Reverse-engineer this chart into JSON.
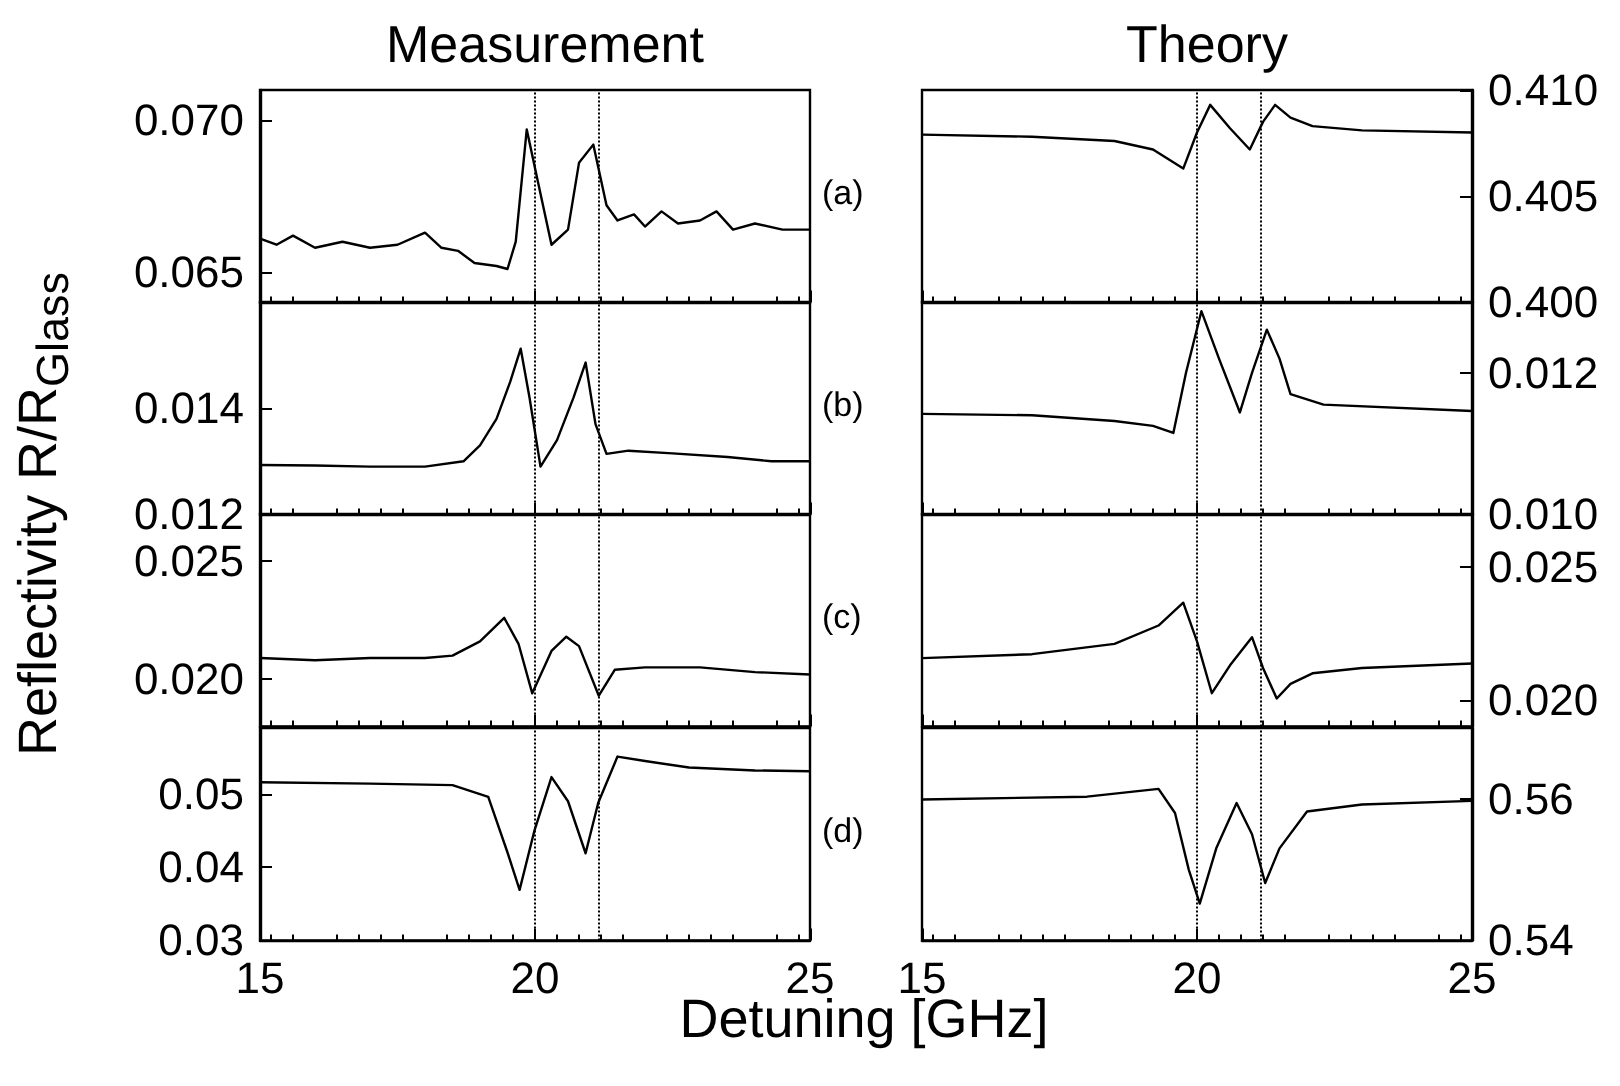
{
  "chart_data": [
    {
      "type": "line",
      "title": "Measurement",
      "ylabel": "Reflectivity R/R$_{Glass}$",
      "xlim": [
        15,
        25
      ],
      "xticks": [
        15,
        20,
        25
      ],
      "ylim": [
        0.064,
        0.071
      ],
      "yticks": [
        0.065,
        {
          "value": 0.07,
          "label": "0.070"
        }
      ],
      "tick_labels": "y",
      "grid": false,
      "ref_lines": [
        {
          "axis": "x",
          "value": 20,
          "line_style": "dotted",
          "color": "#000000"
        },
        {
          "axis": "x",
          "value": 21.15,
          "line_style": "dotted",
          "color": "#000000"
        }
      ],
      "series": [
        {
          "color": "#000000",
          "x": [
            15,
            15.3,
            15.6,
            16,
            16.5,
            17,
            17.5,
            18,
            18.3,
            18.6,
            18.9,
            19.3,
            19.5,
            19.65,
            19.85,
            20.05,
            20.3,
            20.6,
            20.8,
            21.06,
            21.3,
            21.5,
            21.8,
            22,
            22.3,
            22.6,
            23,
            23.3,
            23.6,
            24,
            24.5,
            25
          ],
          "values": [
            0.0661,
            0.0659,
            0.0662,
            0.0658,
            0.066,
            0.0658,
            0.0659,
            0.0663,
            0.0658,
            0.0657,
            0.0653,
            0.0652,
            0.0651,
            0.066,
            0.0697,
            0.068,
            0.0659,
            0.0664,
            0.0686,
            0.0692,
            0.0672,
            0.0667,
            0.0669,
            0.0665,
            0.067,
            0.0666,
            0.0667,
            0.067,
            0.0664,
            0.0666,
            0.0664,
            0.0664
          ]
        }
      ]
    },
    {
      "type": "line",
      "xlim": [
        15,
        25
      ],
      "xticks": [
        15,
        20,
        25
      ],
      "ylim": [
        0.012,
        0.016
      ],
      "yticks": [
        {
          "value": 0.012,
          "label": "0.012"
        },
        0.014
      ],
      "tick_labels": "y",
      "grid": false,
      "ref_lines": [
        {
          "axis": "x",
          "value": 20,
          "line_style": "dotted",
          "color": "#000000"
        },
        {
          "axis": "x",
          "value": 21.15,
          "line_style": "dotted",
          "color": "#000000"
        }
      ],
      "series": [
        {
          "color": "#000000",
          "x": [
            15,
            16,
            17,
            18,
            18.7,
            19,
            19.3,
            19.55,
            19.74,
            19.9,
            20.1,
            20.4,
            20.7,
            20.92,
            21.1,
            21.3,
            21.7,
            22.5,
            23.5,
            24.3,
            25
          ],
          "values": [
            0.01293,
            0.01292,
            0.0129,
            0.0129,
            0.013,
            0.0133,
            0.0138,
            0.0145,
            0.01512,
            0.0142,
            0.0129,
            0.0134,
            0.0142,
            0.01486,
            0.0137,
            0.01314,
            0.0132,
            0.01315,
            0.01308,
            0.013,
            0.013
          ]
        }
      ]
    },
    {
      "type": "line",
      "xlim": [
        15,
        25
      ],
      "xticks": [
        15,
        20,
        25
      ],
      "ylim": [
        0.018,
        0.027
      ],
      "yticks": [
        {
          "value": 0.02,
          "label": "0.020"
        },
        0.025
      ],
      "tick_labels": "y",
      "grid": false,
      "ref_lines": [
        {
          "axis": "x",
          "value": 20,
          "line_style": "dotted",
          "color": "#000000"
        },
        {
          "axis": "x",
          "value": 21.15,
          "line_style": "dotted",
          "color": "#000000"
        }
      ],
      "series": [
        {
          "color": "#000000",
          "x": [
            15,
            16,
            17,
            18,
            18.5,
            19,
            19.44,
            19.7,
            19.95,
            20.3,
            20.57,
            20.8,
            21.16,
            21.45,
            22,
            23,
            24,
            25
          ],
          "values": [
            0.0209,
            0.0208,
            0.0209,
            0.0209,
            0.021,
            0.0216,
            0.0226,
            0.0215,
            0.0194,
            0.0212,
            0.0218,
            0.0214,
            0.0193,
            0.0204,
            0.0205,
            0.0205,
            0.0203,
            0.0202
          ]
        }
      ]
    },
    {
      "type": "line",
      "xlabel": "Detuning [GHz]",
      "xlim": [
        15,
        25
      ],
      "xticks": [
        15,
        20,
        25
      ],
      "ylim": [
        0.03,
        0.059
      ],
      "yticks": [
        0.03,
        0.04,
        0.05
      ],
      "grid": false,
      "ref_lines": [
        {
          "axis": "x",
          "value": 20,
          "line_style": "dotted",
          "color": "#000000"
        },
        {
          "axis": "x",
          "value": 21.15,
          "line_style": "dotted",
          "color": "#000000"
        }
      ],
      "series": [
        {
          "color": "#000000",
          "x": [
            15,
            17,
            18.5,
            19.15,
            19.5,
            19.72,
            19.99,
            20.3,
            20.6,
            20.92,
            21.15,
            21.5,
            22,
            22.8,
            24,
            25
          ],
          "values": [
            0.0516,
            0.0514,
            0.0512,
            0.0496,
            0.042,
            0.0369,
            0.045,
            0.0523,
            0.049,
            0.0419,
            0.0488,
            0.0551,
            0.0545,
            0.0536,
            0.0532,
            0.0531
          ]
        }
      ]
    },
    {
      "type": "line",
      "title": "Theory",
      "annotations": [
        "(a)"
      ],
      "xlim": [
        15,
        25
      ],
      "xticks": [
        15,
        20,
        25
      ],
      "ylim": [
        0.4,
        0.41
      ],
      "yticks": [
        {
          "value": 0.4,
          "label": "0.400"
        },
        0.405,
        {
          "value": 0.41,
          "label": "0.410"
        }
      ],
      "tick_labels": "y",
      "grid": false,
      "ref_lines": [
        {
          "axis": "x",
          "value": 20,
          "line_style": "dotted",
          "color": "#000000"
        },
        {
          "axis": "x",
          "value": 21.15,
          "line_style": "dotted",
          "color": "#000000"
        }
      ],
      "series": [
        {
          "color": "#000000",
          "x": [
            15,
            17,
            18.5,
            19.2,
            19.75,
            20,
            20.24,
            20.6,
            20.96,
            21.2,
            21.42,
            21.7,
            22.1,
            23,
            25
          ],
          "values": [
            0.4079,
            0.4078,
            0.4076,
            0.4072,
            0.4063,
            0.408,
            0.4093,
            0.4082,
            0.4072,
            0.4085,
            0.4093,
            0.4087,
            0.4083,
            0.4081,
            0.408
          ]
        }
      ]
    },
    {
      "type": "line",
      "annotations": [
        "(b)"
      ],
      "xlim": [
        15,
        25
      ],
      "xticks": [
        15,
        20,
        25
      ],
      "ylim": [
        0.01,
        0.013
      ],
      "yticks": [
        {
          "value": 0.01,
          "label": "0.010"
        },
        0.012
      ],
      "tick_labels": "y",
      "grid": false,
      "ref_lines": [
        {
          "axis": "x",
          "value": 20,
          "line_style": "dotted",
          "color": "#000000"
        },
        {
          "axis": "x",
          "value": 21.15,
          "line_style": "dotted",
          "color": "#000000"
        }
      ],
      "series": [
        {
          "color": "#000000",
          "x": [
            15,
            17,
            18.5,
            19.2,
            19.57,
            19.8,
            20.08,
            20.4,
            20.78,
            21,
            21.27,
            21.5,
            21.7,
            22.3,
            25
          ],
          "values": [
            0.01142,
            0.0114,
            0.01132,
            0.01125,
            0.01115,
            0.012,
            0.01287,
            0.0122,
            0.01144,
            0.012,
            0.01261,
            0.0122,
            0.0117,
            0.01155,
            0.01146
          ]
        }
      ]
    },
    {
      "type": "line",
      "annotations": [
        "(c)"
      ],
      "xlim": [
        15,
        25
      ],
      "xticks": [
        15,
        20,
        25
      ],
      "ylim": [
        0.019,
        0.027
      ],
      "yticks": [
        {
          "value": 0.02,
          "label": "0.020"
        },
        0.025
      ],
      "tick_labels": "y",
      "grid": false,
      "ref_lines": [
        {
          "axis": "x",
          "value": 20,
          "line_style": "dotted",
          "color": "#000000"
        },
        {
          "axis": "x",
          "value": 21.15,
          "line_style": "dotted",
          "color": "#000000"
        }
      ],
      "series": [
        {
          "color": "#000000",
          "x": [
            15,
            17,
            18.5,
            19.3,
            19.75,
            20,
            20.27,
            20.6,
            21,
            21.2,
            21.45,
            21.7,
            22.1,
            23,
            25
          ],
          "values": [
            0.02157,
            0.02172,
            0.02211,
            0.0228,
            0.02366,
            0.0222,
            0.02025,
            0.0213,
            0.02236,
            0.0212,
            0.02005,
            0.0206,
            0.021,
            0.0212,
            0.02137
          ]
        }
      ]
    },
    {
      "type": "line",
      "annotations": [
        "(d)"
      ],
      "xlim": [
        15,
        25
      ],
      "xticks": [
        15,
        20,
        25
      ],
      "ylim": [
        0.54,
        0.57
      ],
      "yticks": [
        0.54,
        0.56
      ],
      "grid": false,
      "ref_lines": [
        {
          "axis": "x",
          "value": 20,
          "line_style": "dotted",
          "color": "#000000"
        },
        {
          "axis": "x",
          "value": 21.15,
          "line_style": "dotted",
          "color": "#000000"
        }
      ],
      "series": [
        {
          "color": "#000000",
          "x": [
            15,
            18,
            19.3,
            19.6,
            19.85,
            20.05,
            20.35,
            20.72,
            21,
            21.24,
            21.5,
            22,
            23,
            25
          ],
          "values": [
            0.5599,
            0.5603,
            0.5614,
            0.558,
            0.55,
            0.5452,
            0.553,
            0.5594,
            0.555,
            0.5481,
            0.553,
            0.5582,
            0.5592,
            0.5597
          ]
        }
      ]
    }
  ]
}
